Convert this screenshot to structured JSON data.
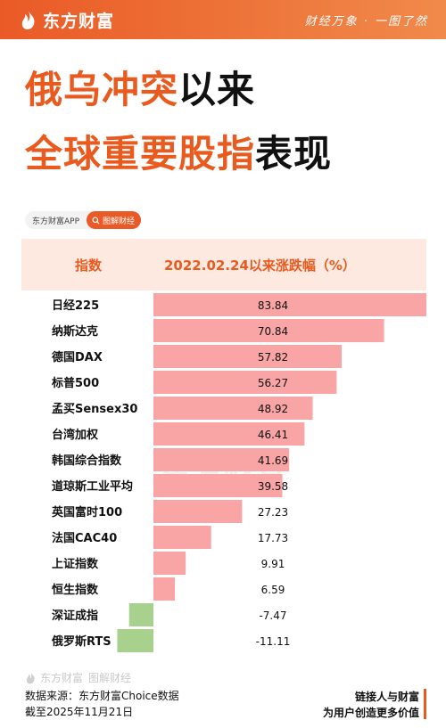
{
  "brand": {
    "name": "东方财富",
    "slogan": "财经万象 · 一图了然"
  },
  "title": {
    "line1_orange": "俄乌冲突",
    "line1_black": "以来",
    "line2_orange": "全球重要股指",
    "line2_black": "表现"
  },
  "tags": {
    "app": "东方财富APP",
    "pill": "图解财经"
  },
  "colors": {
    "positive": "#f9a5a5",
    "negative": "#a9d18e",
    "accent": "#e95a1f",
    "header_bg": "#fde9e0"
  },
  "chart_data": {
    "type": "bar",
    "orientation": "horizontal",
    "column_headers": [
      "指数",
      "2022.02.24以来涨跌幅（%）"
    ],
    "categories": [
      "日经225",
      "纳斯达克",
      "德国DAX",
      "标普500",
      "孟买Sensex30",
      "台湾加权",
      "韩国综合指数",
      "道琼斯工业平均",
      "英国富时100",
      "法国CAC40",
      "上证指数",
      "恒生指数",
      "深证成指",
      "俄罗斯RTS"
    ],
    "values": [
      83.84,
      70.84,
      57.82,
      56.27,
      48.92,
      46.41,
      41.69,
      39.58,
      27.23,
      17.73,
      9.91,
      6.59,
      -7.47,
      -11.11
    ],
    "value_labels": [
      "83.84",
      "70.84",
      "57.82",
      "56.27",
      "48.92",
      "46.41",
      "41.69",
      "39.58",
      "27.23",
      "17.73",
      "9.91",
      "6.59",
      "-7.47",
      "-11.11"
    ],
    "watermark": "东方财富"
  },
  "footer": {
    "watermark_brand": "东方财富",
    "watermark_tag": "图解财经",
    "source": "数据来源：东方财富Choice数据",
    "date": "截至2025年11月21日",
    "slogan1": "链接人与财富",
    "slogan2": "为用户创造更多价值"
  }
}
